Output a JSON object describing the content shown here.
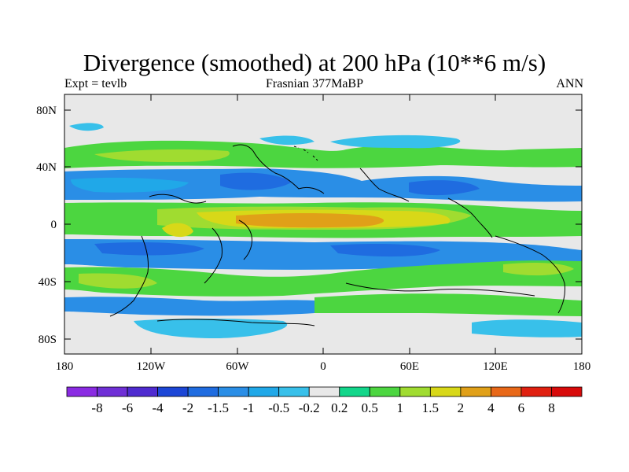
{
  "title": "Divergence (smoothed) at 200 hPa (10**6 m/s)",
  "subtitle_left": "Expt = tevlb",
  "subtitle_center": "Frasnian 377MaBP",
  "subtitle_right": "ANN",
  "y_ticks": [
    "80N",
    "40N",
    "0",
    "40S",
    "80S"
  ],
  "x_ticks": [
    "180",
    "120W",
    "60W",
    "0",
    "60E",
    "120E",
    "180"
  ],
  "colorbar": {
    "labels": [
      "-8",
      "-6",
      "-4",
      "-2",
      "-1.5",
      "-1",
      "-0.5",
      "-0.2",
      "0.2",
      "0.5",
      "1",
      "1.5",
      "2",
      "4",
      "6",
      "8"
    ],
    "colors": [
      "#8a2be2",
      "#6f2fd6",
      "#4f2bd0",
      "#1c46d6",
      "#1f6ce0",
      "#2a8ee6",
      "#20a8e8",
      "#38c0ea",
      "#e8e8e8",
      "#12d68a",
      "#4cd640",
      "#a0dc30",
      "#d8d818",
      "#e0a018",
      "#e86818",
      "#e02010",
      "#d80a0a"
    ]
  },
  "colors": {
    "background_field": "#e8e8e8",
    "coastline": "#000000"
  }
}
